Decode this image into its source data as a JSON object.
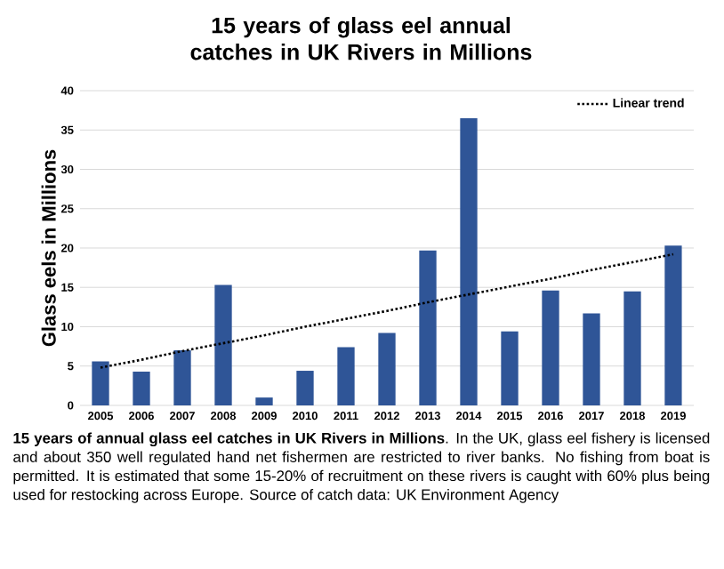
{
  "chart_data": {
    "type": "bar",
    "title": "15 years of glass eel annual catches in UK Rivers in Millions",
    "ylabel": "Glass eels in Millions",
    "categories": [
      "2005",
      "2006",
      "2007",
      "2008",
      "2009",
      "2010",
      "2011",
      "2012",
      "2013",
      "2014",
      "2015",
      "2016",
      "2017",
      "2018",
      "2019"
    ],
    "series": [
      {
        "color": "#2f5597",
        "values": [
          5.6,
          4.3,
          7.0,
          15.3,
          1.0,
          4.4,
          7.4,
          9.2,
          19.7,
          36.5,
          9.4,
          14.6,
          11.7,
          14.5,
          20.3
        ]
      },
      {
        "type": "line",
        "name": "Linear trend",
        "color": "#000000",
        "line_style": "dotted",
        "values": [
          4.8,
          5.8,
          6.9,
          7.9,
          8.9,
          10.0,
          11.0,
          12.0,
          13.1,
          14.1,
          15.1,
          16.1,
          17.2,
          18.2,
          19.2
        ]
      }
    ],
    "ylim": [
      0,
      40
    ],
    "yticks": [
      0,
      5,
      10,
      15,
      20,
      25,
      30,
      35,
      40
    ],
    "grid": "y",
    "legend": "top right",
    "annotations": [
      "**15 years of annual glass eel catches in UK Rivers in Millions**. In the UK, glass eel fishery is licensed and about 350 well regulated hand net fishermen are restricted to river banks. No fishing from boat is permitted. It is estimated that some 15-20% of recruitment on these rivers is caught with 60% plus being used for restocking across Europe. Source of catch data: UK Environment Agency"
    ]
  }
}
